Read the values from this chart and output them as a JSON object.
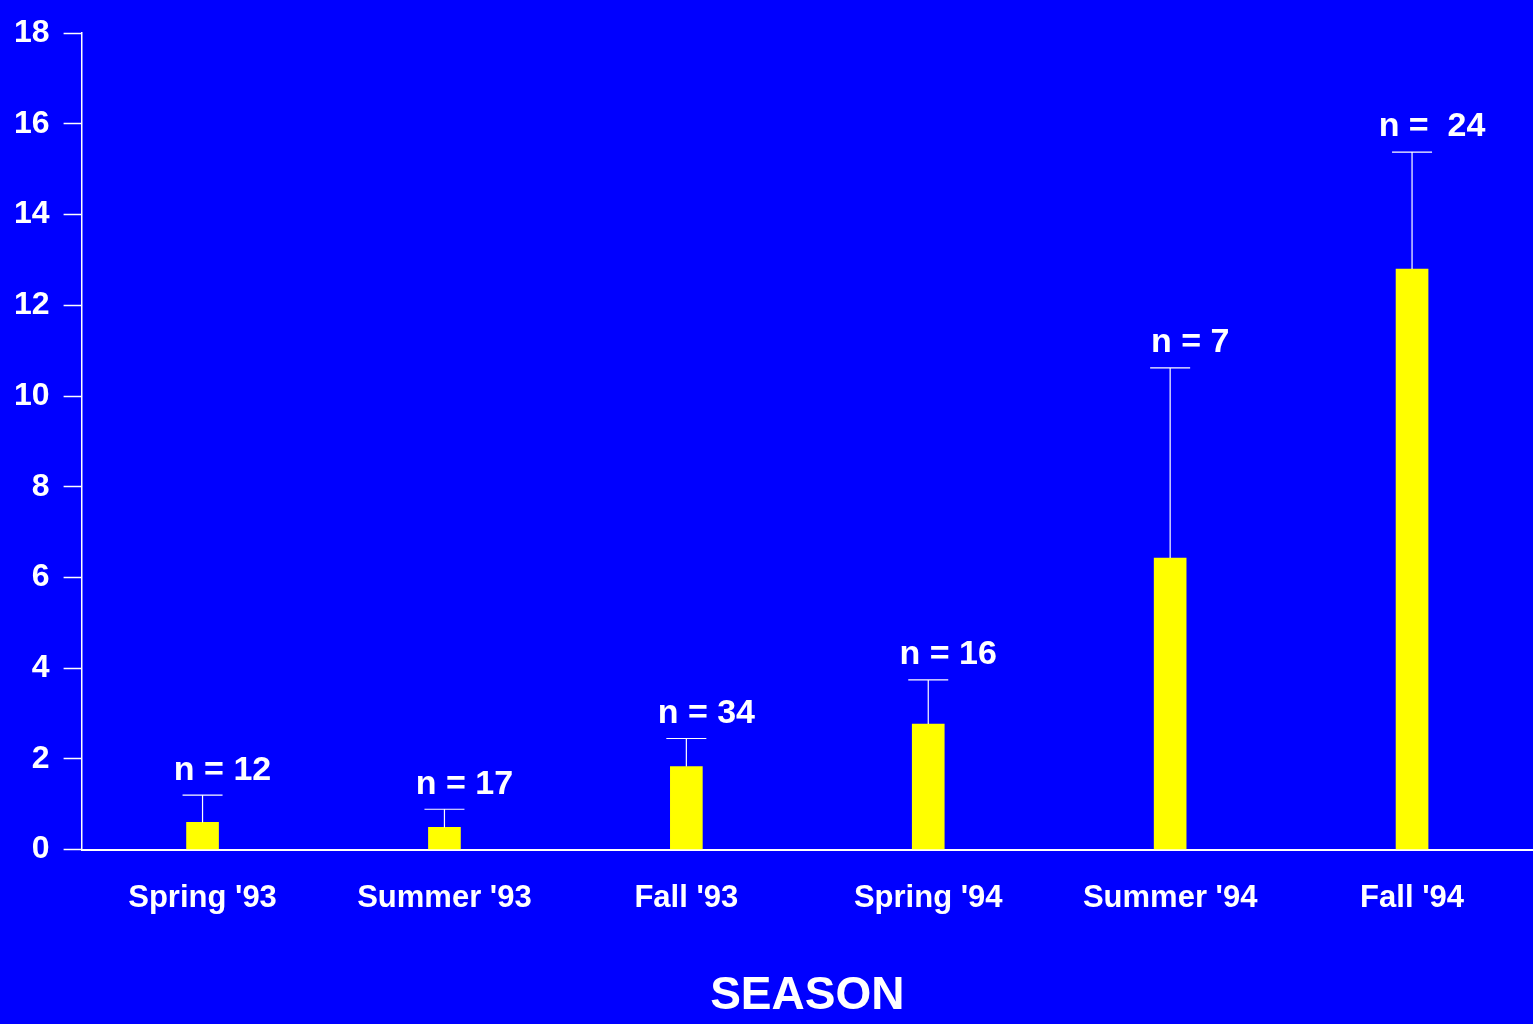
{
  "chart_data": {
    "type": "bar",
    "xlabel": "SEASON",
    "categories": [
      "Spring '93",
      "Summer '93",
      "Fall '93",
      "Spring '94",
      "Summer '94",
      "Fall '94"
    ],
    "values": [
      0.6,
      0.49,
      1.83,
      2.77,
      6.43,
      12.8
    ],
    "errors": [
      [
        0.6,
        1.2
      ],
      [
        0.49,
        0.89
      ],
      [
        1.83,
        2.45
      ],
      [
        2.77,
        3.74
      ],
      [
        6.43,
        10.62
      ],
      [
        12.8,
        15.38
      ]
    ],
    "color": "#ffff00",
    "ylim": [
      0,
      18
    ],
    "yticks": [
      0,
      2,
      4,
      6,
      8,
      10,
      12,
      14,
      16,
      18
    ],
    "grid": false,
    "legend": false,
    "annotations": [
      "n = 12",
      "n = 17",
      "n = 34",
      "n = 16",
      "n = 7",
      "n =  24"
    ]
  }
}
